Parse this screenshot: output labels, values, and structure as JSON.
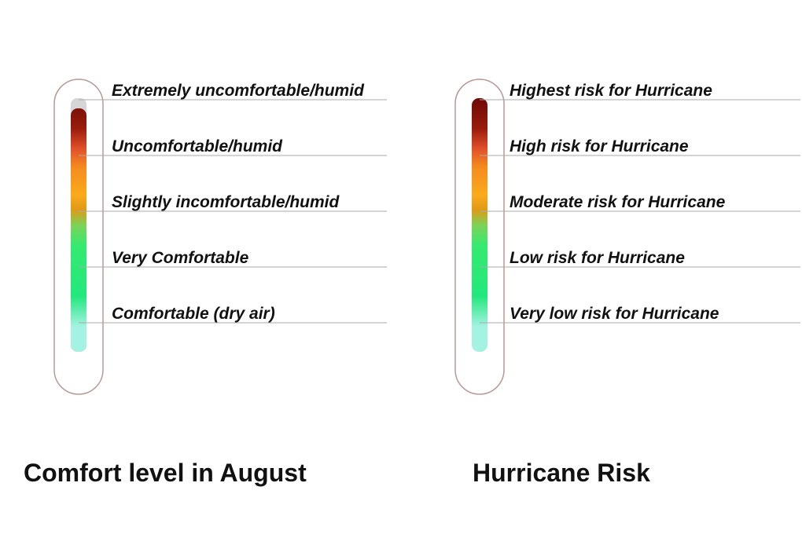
{
  "gauges": [
    {
      "levels": [
        "Extremely uncomfortable/humid",
        "Uncomfortable/humid",
        "Slightly incomfortable/humid",
        "Very Comfortable",
        "Comfortable (dry air)"
      ],
      "title": "Comfort level in August"
    },
    {
      "levels": [
        "Highest risk for Hurricane",
        "High risk for Hurricane",
        "Moderate risk for Hurricane",
        "Low risk for Hurricane",
        "Very low risk for Hurricane"
      ],
      "title": "Hurricane Risk"
    }
  ]
}
